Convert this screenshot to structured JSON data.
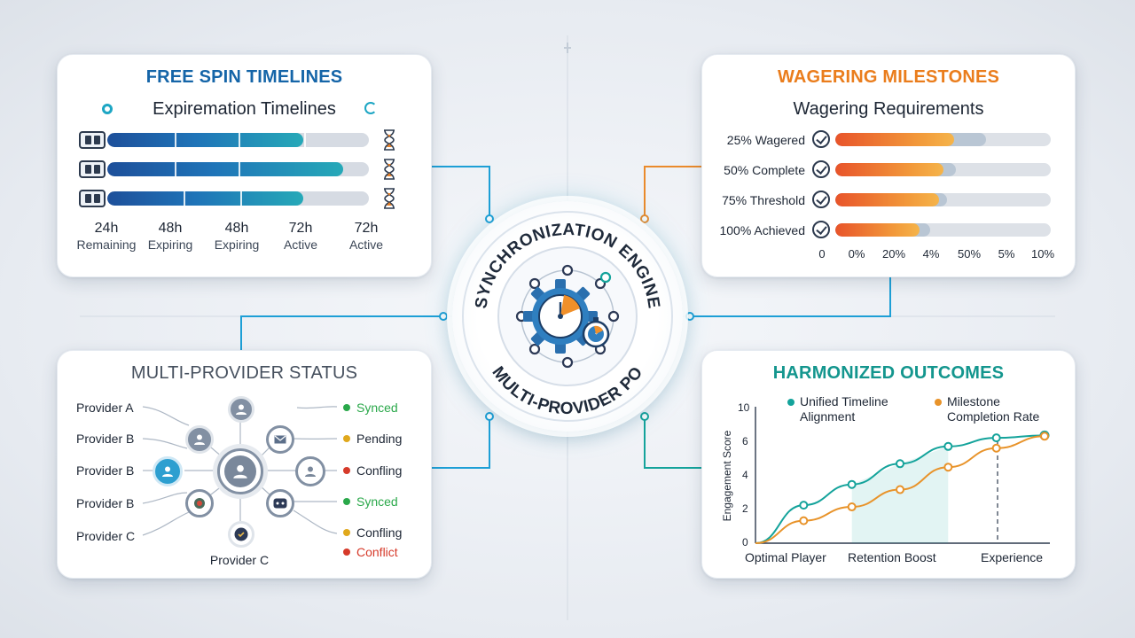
{
  "free_spin": {
    "title": "FREE SPIN TIMELINES",
    "subtitle": "Expiremation Timelines",
    "icon": "slot-machine-icon",
    "rows": [
      {
        "progress": 0.75
      },
      {
        "progress": 0.9
      },
      {
        "progress": 0.75
      }
    ],
    "labels": [
      {
        "value": "24h",
        "label": "Remaining"
      },
      {
        "value": "48h",
        "label": "Expiring"
      },
      {
        "value": "48h",
        "label": "Expiring"
      },
      {
        "value": "72h",
        "label": "Active"
      },
      {
        "value": "72h",
        "label": "Active"
      }
    ]
  },
  "wagering": {
    "title": "WAGERING MILESTONES",
    "subtitle": "Wagering Requirements",
    "rows": [
      {
        "label": "25% Wagered",
        "progress": 0.55,
        "light": 0.7
      },
      {
        "label": "50% Complete",
        "progress": 0.5,
        "light": 0.56
      },
      {
        "label": "75% Threshold",
        "progress": 0.48,
        "light": 0.52
      },
      {
        "label": "100% Achieved",
        "progress": 0.39,
        "light": 0.44
      }
    ],
    "ticks": [
      "0",
      "0%",
      "20%",
      "4%",
      "50%",
      "5%",
      "10%"
    ]
  },
  "providers": {
    "title": "MULTI-PROVIDER STATUS",
    "left_labels": [
      "Provider A",
      "Provider B",
      "Provider B",
      "Provider B",
      "Provider C"
    ],
    "bottom_label": "Provider C",
    "statuses": [
      {
        "label": "Synced",
        "color": "#2aa84a"
      },
      {
        "label": "Pending",
        "color": "#e0a81c"
      },
      {
        "label": "Confling",
        "color": "#d63a2a"
      },
      {
        "label": "Synced",
        "color": "#2aa84a"
      },
      {
        "label": "Confling",
        "color": "#e0a81c"
      },
      {
        "label": "Conflict",
        "color": "#d63a2a"
      }
    ]
  },
  "hub": {
    "top_text": "SYNCHRONIZATION ENGINE",
    "bottom_text": "MULTI-PROVIDER PO",
    "icon": "gear-clock-icon"
  },
  "outcomes": {
    "title": "HARMONIZED OUTCOMES",
    "legend": [
      {
        "label": "Unified Timeline Alignment",
        "line1": "Unified Timeline",
        "line2": "Alignment",
        "color": "#14a39b"
      },
      {
        "label": "Milestone Completion Rate",
        "line1": "Milestone",
        "line2": "Completion Rate",
        "color": "#e8932a"
      }
    ],
    "ylabel": "Engagement Score",
    "yticks": [
      "10",
      "6",
      "4",
      "2",
      "0"
    ],
    "xlabels": [
      "Optimal Player",
      "Retention Boost",
      "Experience"
    ]
  },
  "chart_data": {
    "type": "line",
    "ylabel": "Engagement Score",
    "yticks": [
      "0",
      "2",
      "4",
      "6",
      "10"
    ],
    "x": [
      0,
      1,
      2,
      3,
      4,
      5,
      6
    ],
    "series": [
      {
        "name": "Unified Timeline Alignment",
        "color": "#14a39b",
        "values": [
          0,
          2.2,
          3.4,
          4.6,
          5.6,
          6.2,
          6.5
        ]
      },
      {
        "name": "Milestone Completion Rate",
        "color": "#e8932a",
        "values": [
          0,
          1.3,
          2.1,
          3.1,
          4.4,
          5.5,
          6.4
        ]
      }
    ]
  }
}
